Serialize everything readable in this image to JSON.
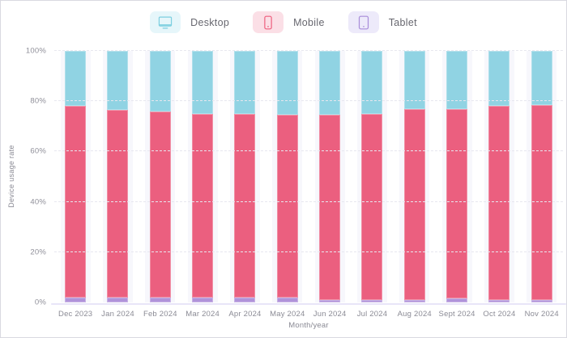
{
  "legend": {
    "items": [
      {
        "label": "Desktop",
        "icon": "desktop-icon",
        "swatch_bg": "#e6f6fa",
        "icon_color": "#7ccfe0"
      },
      {
        "label": "Mobile",
        "icon": "mobile-icon",
        "swatch_bg": "#fbdfe6",
        "icon_color": "#ee5e7d"
      },
      {
        "label": "Tablet",
        "icon": "tablet-icon",
        "swatch_bg": "#edeafa",
        "icon_color": "#a88cd9"
      }
    ]
  },
  "chart_data": {
    "type": "bar",
    "stacked": true,
    "percent_stacked": true,
    "title": "",
    "xlabel": "Month/year",
    "ylabel": "Device usage rate",
    "ylim": [
      0,
      100
    ],
    "y_ticks": [
      "0%",
      "20%",
      "40%",
      "60%",
      "80%",
      "100%"
    ],
    "grid": "dashed-horizontal",
    "legend_position": "top",
    "band_bg": "#f7f7fc",
    "categories": [
      "Dec 2023",
      "Jan 2024",
      "Feb 2024",
      "Mar 2024",
      "Apr 2024",
      "May 2024",
      "Jun 2024",
      "Jul 2024",
      "Aug 2024",
      "Sept 2024",
      "Oct 2024",
      "Nov 2024"
    ],
    "unit": "%",
    "series": [
      {
        "name": "Tablet",
        "color": "#b093da",
        "values": [
          2,
          2,
          2,
          2,
          2,
          2,
          1,
          1,
          1,
          1.5,
          1,
          1
        ]
      },
      {
        "name": "Mobile",
        "color": "#eb5f7f",
        "values": [
          76,
          74.5,
          74,
          73,
          73,
          72.5,
          73.5,
          74,
          76,
          75.5,
          77,
          77.5
        ]
      },
      {
        "name": "Desktop",
        "color": "#90d3e3",
        "values": [
          22,
          23.5,
          24,
          25,
          25,
          25.5,
          25.5,
          25,
          23,
          23,
          22,
          21.5
        ]
      }
    ]
  }
}
